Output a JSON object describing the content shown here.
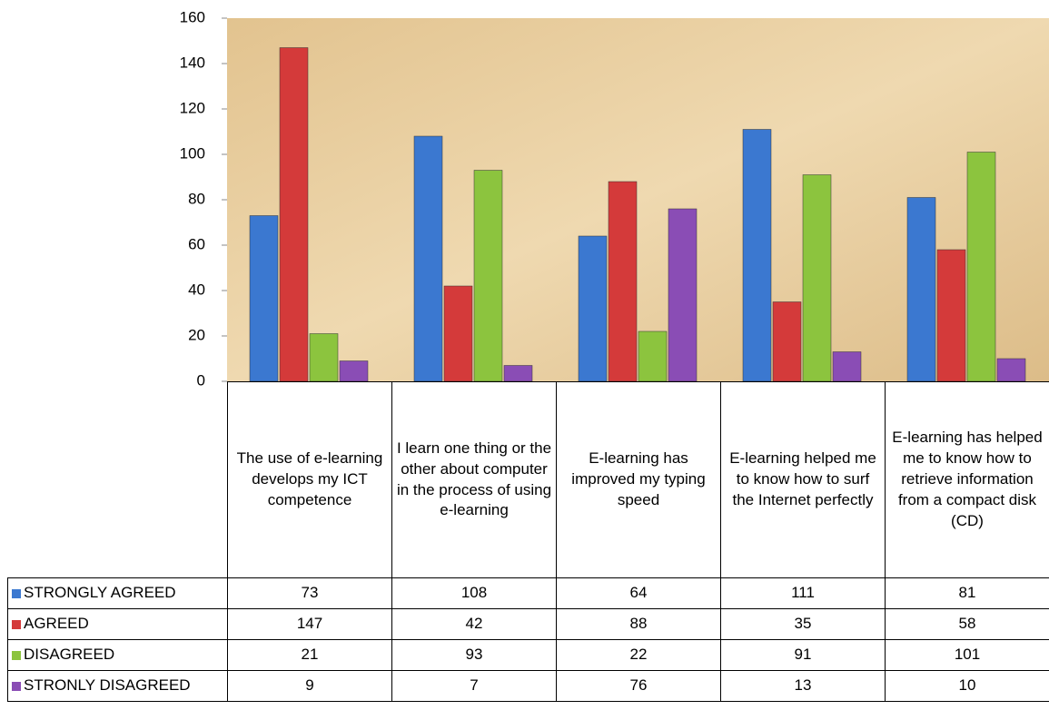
{
  "chart_data": {
    "type": "bar",
    "categories": [
      "The use of e-learning develops my ICT competence",
      "I learn one thing or the other about computer in the process of using e-learning",
      "E-learning has improved my typing speed",
      "E-learning helped me to know how to surf the Internet perfectly",
      "E-learning has helped me to know how to retrieve information from a compact disk (CD)"
    ],
    "series": [
      {
        "name": "STRONGLY AGREED",
        "color": "#3b78d0",
        "values": [
          73,
          108,
          64,
          111,
          81
        ]
      },
      {
        "name": "AGREED",
        "color": "#d43a3a",
        "values": [
          147,
          42,
          88,
          35,
          58
        ]
      },
      {
        "name": "DISAGREED",
        "color": "#8cc43e",
        "values": [
          21,
          93,
          22,
          91,
          101
        ]
      },
      {
        "name": "STRONLY DISAGREED",
        "color": "#8a4db5",
        "values": [
          9,
          7,
          76,
          13,
          10
        ]
      }
    ],
    "ylim": [
      0,
      160
    ],
    "yticks": [
      0,
      20,
      40,
      60,
      80,
      100,
      120,
      140,
      160
    ]
  }
}
